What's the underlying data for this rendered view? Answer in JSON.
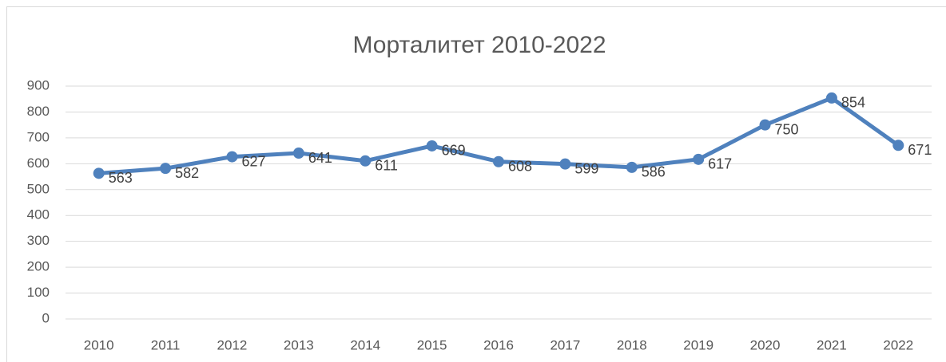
{
  "chart_data": {
    "type": "line",
    "title": "Морталитет 2010-2022",
    "categories": [
      "2010",
      "2011",
      "2012",
      "2013",
      "2014",
      "2015",
      "2016",
      "2017",
      "2018",
      "2019",
      "2020",
      "2021",
      "2022"
    ],
    "values": [
      563,
      582,
      627,
      641,
      611,
      669,
      608,
      599,
      586,
      617,
      750,
      854,
      671
    ],
    "color": "#4f81bd",
    "ylim": [
      0,
      900
    ],
    "yticks": [
      0,
      100,
      200,
      300,
      400,
      500,
      600,
      700,
      800,
      900
    ],
    "grid": true
  }
}
